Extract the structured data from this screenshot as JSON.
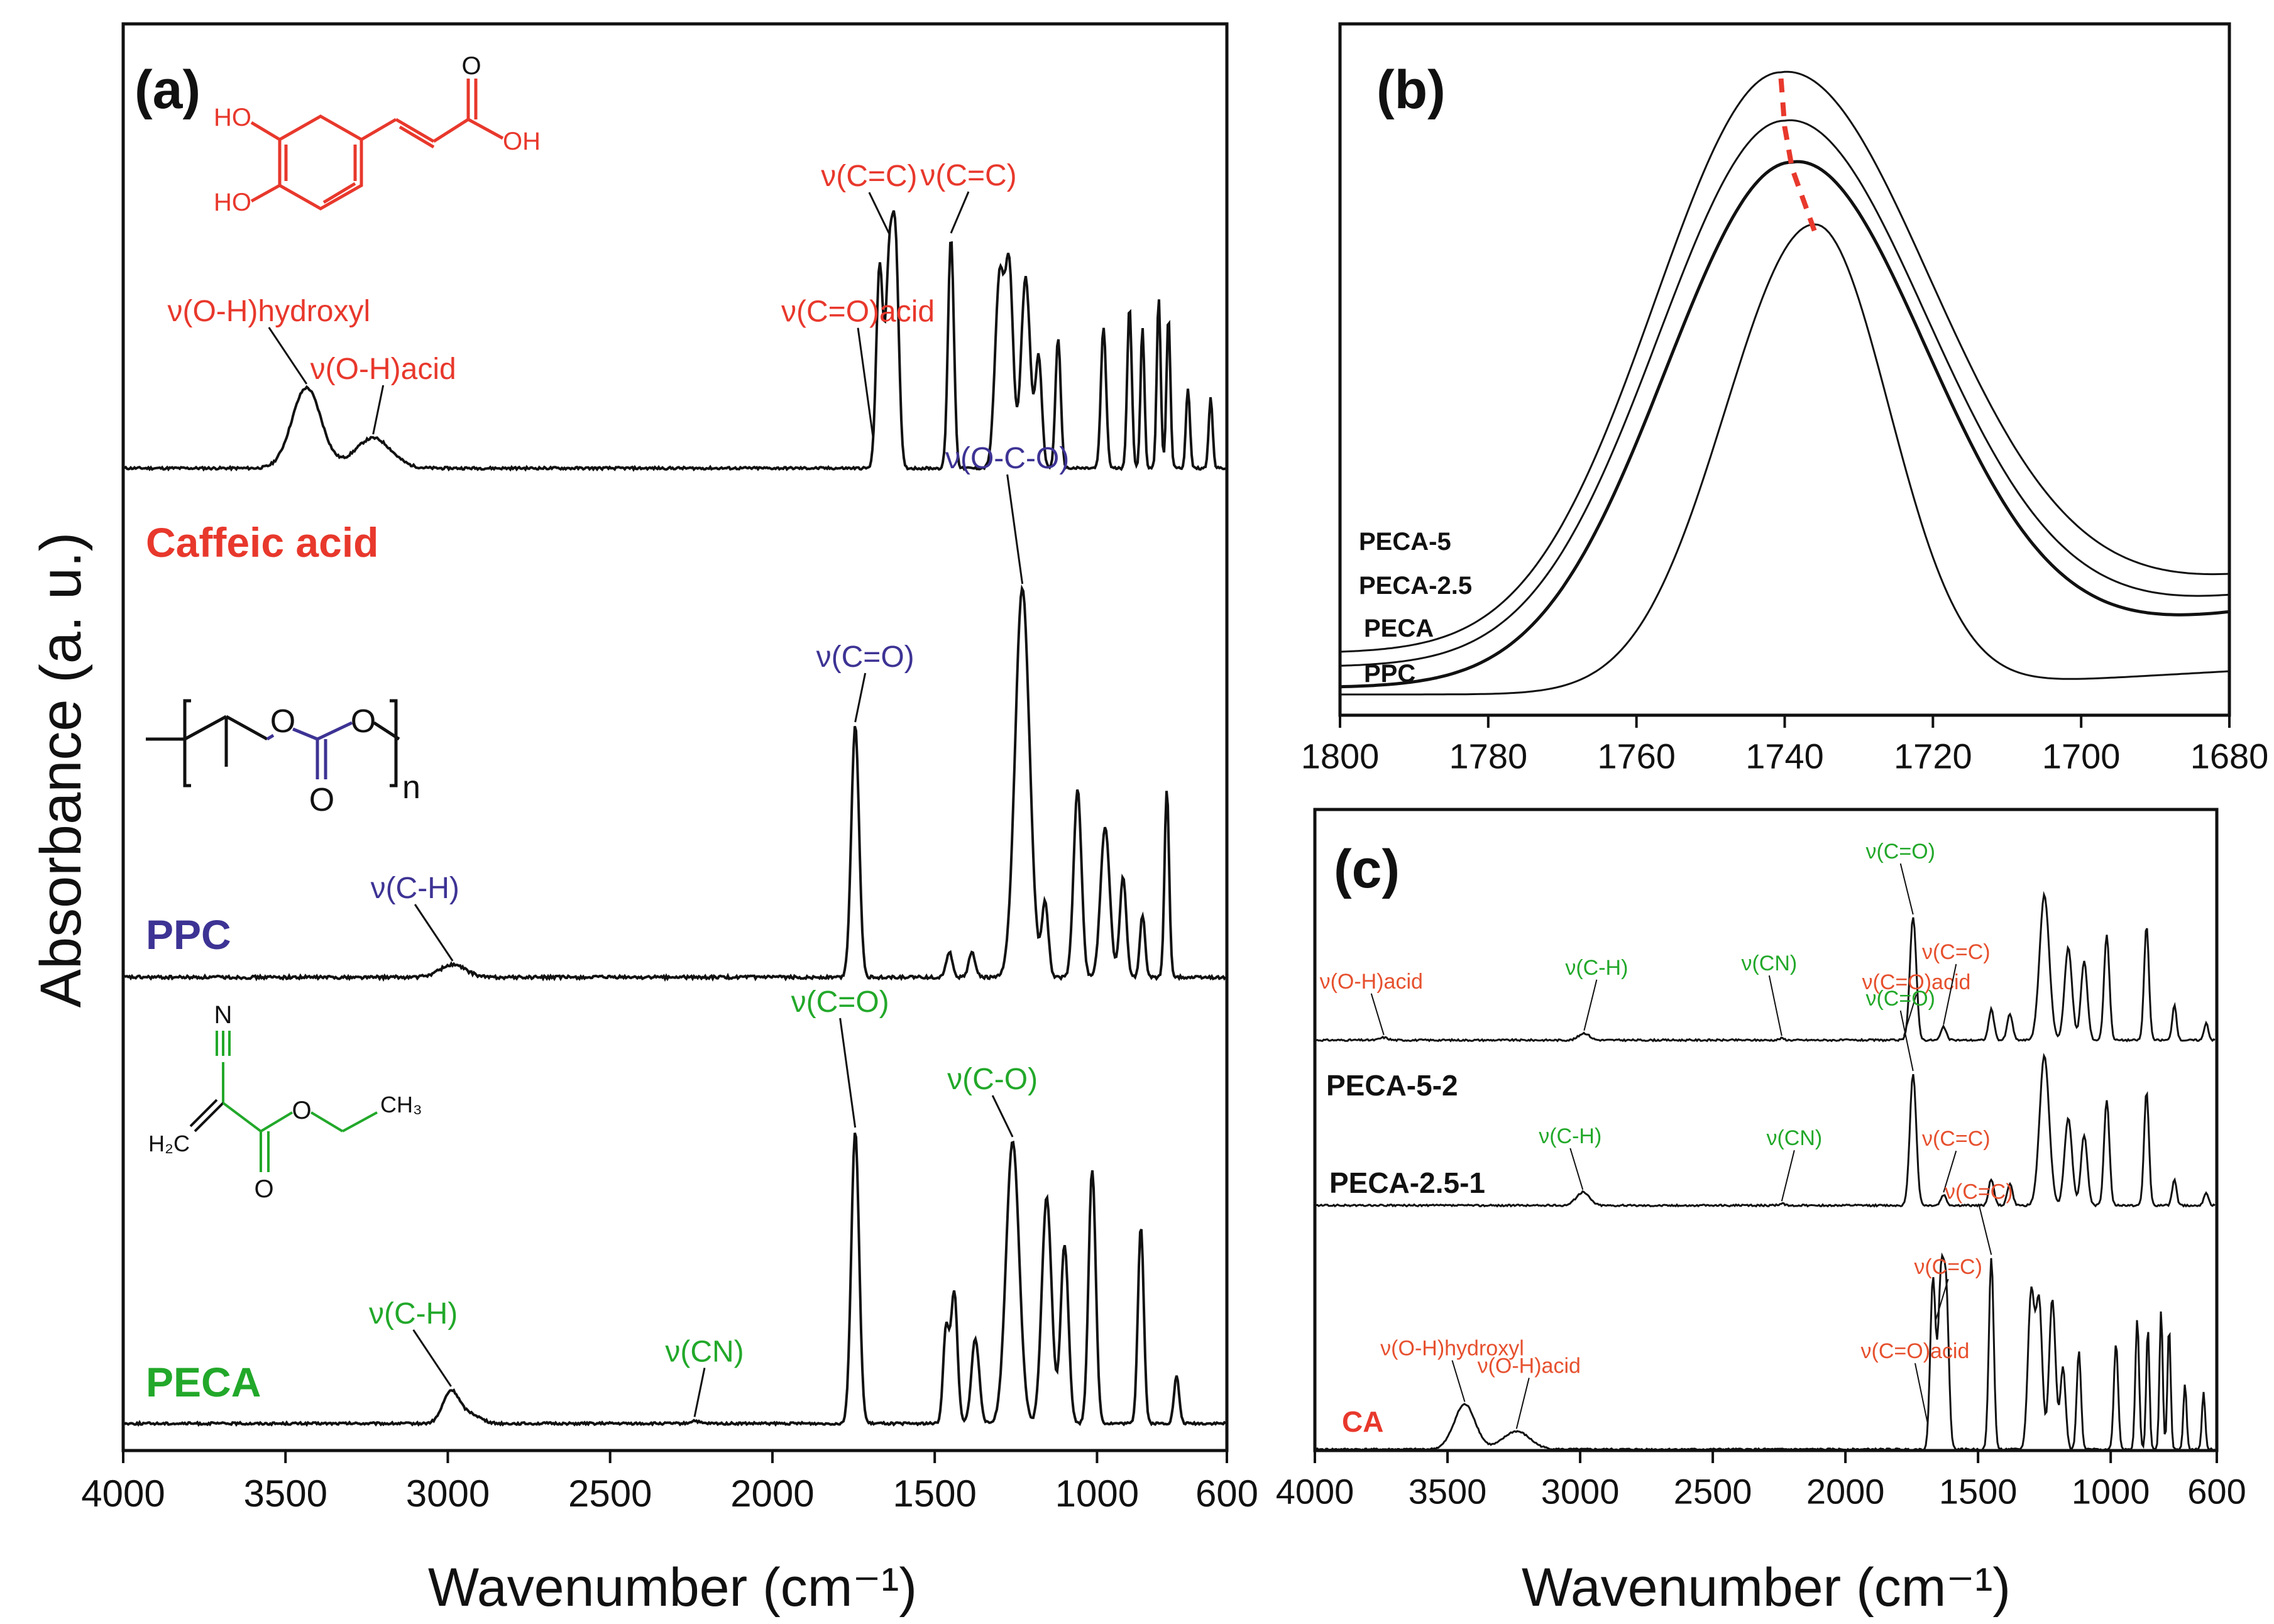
{
  "colors": {
    "red": "#e8382c",
    "blue": "#3d3394",
    "green": "#22a82a",
    "black": "#111111",
    "orangered": "#e6502e"
  },
  "figure": {
    "ylabel": "Absorbance (a. u.)"
  },
  "chart_data": [
    {
      "panel": "(a)",
      "type": "line",
      "xlabel": "Wavenumber (cm⁻¹)",
      "xlim": [
        4000,
        600
      ],
      "xticks": [
        4000,
        3500,
        3000,
        2500,
        2000,
        1500,
        1000,
        600
      ],
      "ylabel": "Absorbance (a. u.)",
      "structures": [
        "caffeic-acid-structure",
        "ppc-structure",
        "peca-structure"
      ],
      "series": [
        {
          "name": "Caffeic acid",
          "color": "#e8382c",
          "peaks": [
            {
              "x": 3435,
              "h": 0.4,
              "w": 45
            },
            {
              "x": 3230,
              "h": 0.15,
              "w": 55
            },
            {
              "x": 1670,
              "h": 1.0,
              "w": 10
            },
            {
              "x": 1640,
              "h": 1.0,
              "w": 11
            },
            {
              "x": 1620,
              "h": 1.0,
              "w": 10
            },
            {
              "x": 1450,
              "h": 1.15,
              "w": 9
            },
            {
              "x": 1300,
              "h": 0.95,
              "w": 14
            },
            {
              "x": 1270,
              "h": 0.95,
              "w": 12
            },
            {
              "x": 1220,
              "h": 0.95,
              "w": 14
            },
            {
              "x": 1180,
              "h": 0.55,
              "w": 10
            },
            {
              "x": 1120,
              "h": 0.65,
              "w": 8
            },
            {
              "x": 980,
              "h": 0.7,
              "w": 8
            },
            {
              "x": 900,
              "h": 0.8,
              "w": 7
            },
            {
              "x": 860,
              "h": 0.7,
              "w": 6
            },
            {
              "x": 810,
              "h": 0.85,
              "w": 6
            },
            {
              "x": 780,
              "h": 0.75,
              "w": 6
            },
            {
              "x": 720,
              "h": 0.4,
              "w": 6
            },
            {
              "x": 650,
              "h": 0.35,
              "w": 6
            }
          ],
          "annotations": [
            {
              "text": "ν(O-H)hydroxyl",
              "x": 3435
            },
            {
              "text": "ν(O-H)acid",
              "x": 3230
            },
            {
              "text": "ν(C=O)acid",
              "x": 1690
            },
            {
              "text": "ν(C=C)",
              "x": 1640
            },
            {
              "text": "ν(C=C)",
              "x": 1450
            }
          ]
        },
        {
          "name": "PPC",
          "color": "#3d3394",
          "peaks": [
            {
              "x": 2985,
              "h": 0.05,
              "w": 40
            },
            {
              "x": 1745,
              "h": 1.0,
              "w": 12
            },
            {
              "x": 1455,
              "h": 0.1,
              "w": 10
            },
            {
              "x": 1385,
              "h": 0.1,
              "w": 10
            },
            {
              "x": 1230,
              "h": 1.55,
              "w": 22
            },
            {
              "x": 1160,
              "h": 0.3,
              "w": 10
            },
            {
              "x": 1060,
              "h": 0.75,
              "w": 12
            },
            {
              "x": 975,
              "h": 0.6,
              "w": 14
            },
            {
              "x": 920,
              "h": 0.4,
              "w": 10
            },
            {
              "x": 860,
              "h": 0.25,
              "w": 8
            },
            {
              "x": 785,
              "h": 0.75,
              "w": 7
            }
          ],
          "annotations": [
            {
              "text": "ν(C-H)",
              "x": 2985
            },
            {
              "text": "ν(C=O)",
              "x": 1745
            },
            {
              "text": "ν(O-C-O)",
              "x": 1230
            }
          ]
        },
        {
          "name": "PECA",
          "color": "#22a82a",
          "peaks": [
            {
              "x": 2990,
              "h": 0.17,
              "w": 25
            },
            {
              "x": 2930,
              "h": 0.05,
              "w": 30
            },
            {
              "x": 2240,
              "h": 0.015,
              "w": 12
            },
            {
              "x": 1745,
              "h": 1.55,
              "w": 12
            },
            {
              "x": 1465,
              "h": 0.5,
              "w": 9
            },
            {
              "x": 1440,
              "h": 0.7,
              "w": 10
            },
            {
              "x": 1375,
              "h": 0.45,
              "w": 12
            },
            {
              "x": 1260,
              "h": 1.5,
              "w": 20
            },
            {
              "x": 1155,
              "h": 1.2,
              "w": 15
            },
            {
              "x": 1100,
              "h": 0.95,
              "w": 12
            },
            {
              "x": 1015,
              "h": 1.35,
              "w": 11
            },
            {
              "x": 865,
              "h": 1.05,
              "w": 9
            },
            {
              "x": 755,
              "h": 0.25,
              "w": 8
            }
          ],
          "annotations": [
            {
              "text": "ν(C-H)",
              "x": 2990
            },
            {
              "text": "ν(CN)",
              "x": 2240
            },
            {
              "text": "ν(C=O)",
              "x": 1745
            },
            {
              "text": "ν(C-O)",
              "x": 1260
            }
          ]
        }
      ]
    },
    {
      "panel": "(b)",
      "type": "line",
      "xlabel": "",
      "xlim": [
        1800,
        1680
      ],
      "xticks": [
        1800,
        1780,
        1760,
        1740,
        1720,
        1700,
        1680
      ],
      "note": "dashed red line traces the C=O peak maximum shift",
      "series": [
        {
          "name": "PECA-5",
          "peak_x": 1740.5,
          "base": 0.09,
          "top": 0.93,
          "left_w": 17,
          "right_w": 20,
          "tail_slope": 0.0035,
          "sw": 3
        },
        {
          "name": "PECA-2.5",
          "peak_x": 1740,
          "base": 0.07,
          "top": 0.86,
          "left_w": 17,
          "right_w": 19,
          "tail_slope": 0.0033,
          "sw": 3
        },
        {
          "name": "PECA",
          "peak_x": 1739,
          "base": 0.04,
          "top": 0.8,
          "left_w": 17,
          "right_w": 18,
          "tail_slope": 0.0036,
          "sw": 5
        },
        {
          "name": "PPC",
          "peak_x": 1736,
          "base": 0.03,
          "top": 0.71,
          "left_w": 12,
          "right_w": 10,
          "tail_slope": 0.0012,
          "sw": 3
        }
      ]
    },
    {
      "panel": "(c)",
      "type": "line",
      "xlabel": "Wavenumber (cm⁻¹)",
      "xlim": [
        4000,
        600
      ],
      "xticks": [
        4000,
        3500,
        3000,
        2500,
        2000,
        1500,
        1000,
        600
      ],
      "series": [
        {
          "name": "PECA-5-2",
          "color": "#111111",
          "peaks": [
            {
              "x": 3740,
              "h": 0.03,
              "w": 15
            },
            {
              "x": 2985,
              "h": 0.08,
              "w": 20
            },
            {
              "x": 2240,
              "h": 0.02,
              "w": 10
            },
            {
              "x": 1745,
              "h": 1.4,
              "w": 12
            },
            {
              "x": 1630,
              "h": 0.15,
              "w": 10
            },
            {
              "x": 1450,
              "h": 0.35,
              "w": 10
            },
            {
              "x": 1380,
              "h": 0.3,
              "w": 10
            },
            {
              "x": 1250,
              "h": 1.65,
              "w": 18
            },
            {
              "x": 1160,
              "h": 1.05,
              "w": 14
            },
            {
              "x": 1100,
              "h": 0.9,
              "w": 12
            },
            {
              "x": 1015,
              "h": 1.2,
              "w": 10
            },
            {
              "x": 865,
              "h": 1.3,
              "w": 9
            },
            {
              "x": 760,
              "h": 0.4,
              "w": 8
            },
            {
              "x": 640,
              "h": 0.2,
              "w": 8
            }
          ],
          "annotations": [
            {
              "text": "ν(O-H)acid",
              "x": 3740,
              "color": "red"
            },
            {
              "text": "ν(C-H)",
              "x": 2985,
              "color": "green"
            },
            {
              "text": "ν(CN)",
              "x": 2240,
              "color": "green"
            },
            {
              "text": "ν(C=O)acid",
              "x": 1780,
              "color": "red"
            },
            {
              "text": "ν(C=O)",
              "x": 1745,
              "color": "green"
            },
            {
              "text": "ν(C=C)",
              "x": 1630,
              "color": "red"
            }
          ]
        },
        {
          "name": "PECA-2.5-1",
          "color": "#111111",
          "peaks": [
            {
              "x": 2990,
              "h": 0.15,
              "w": 25
            },
            {
              "x": 2240,
              "h": 0.02,
              "w": 10
            },
            {
              "x": 1745,
              "h": 1.5,
              "w": 12
            },
            {
              "x": 1630,
              "h": 0.12,
              "w": 10
            },
            {
              "x": 1450,
              "h": 0.3,
              "w": 10
            },
            {
              "x": 1380,
              "h": 0.25,
              "w": 10
            },
            {
              "x": 1250,
              "h": 1.7,
              "w": 18
            },
            {
              "x": 1160,
              "h": 1.0,
              "w": 14
            },
            {
              "x": 1100,
              "h": 0.8,
              "w": 12
            },
            {
              "x": 1015,
              "h": 1.2,
              "w": 10
            },
            {
              "x": 865,
              "h": 1.3,
              "w": 9
            },
            {
              "x": 760,
              "h": 0.3,
              "w": 8
            },
            {
              "x": 640,
              "h": 0.15,
              "w": 8
            }
          ],
          "annotations": [
            {
              "text": "ν(C-H)",
              "x": 2990,
              "color": "green"
            },
            {
              "text": "ν(CN)",
              "x": 2240,
              "color": "green"
            },
            {
              "text": "ν(C=O)",
              "x": 1745,
              "color": "green"
            },
            {
              "text": "ν(C=C)",
              "x": 1630,
              "color": "red"
            }
          ]
        },
        {
          "name": "CA",
          "color": "#e8382c",
          "peaks": [
            {
              "x": 3435,
              "h": 0.55,
              "w": 40
            },
            {
              "x": 3240,
              "h": 0.22,
              "w": 50
            },
            {
              "x": 1670,
              "h": 2.1,
              "w": 10
            },
            {
              "x": 1640,
              "h": 2.0,
              "w": 10
            },
            {
              "x": 1620,
              "h": 1.85,
              "w": 10
            },
            {
              "x": 1450,
              "h": 2.35,
              "w": 9
            },
            {
              "x": 1300,
              "h": 1.9,
              "w": 12
            },
            {
              "x": 1270,
              "h": 1.8,
              "w": 12
            },
            {
              "x": 1220,
              "h": 1.85,
              "w": 12
            },
            {
              "x": 1180,
              "h": 1.0,
              "w": 10
            },
            {
              "x": 1120,
              "h": 1.2,
              "w": 8
            },
            {
              "x": 980,
              "h": 1.3,
              "w": 8
            },
            {
              "x": 900,
              "h": 1.6,
              "w": 7
            },
            {
              "x": 860,
              "h": 1.5,
              "w": 6
            },
            {
              "x": 810,
              "h": 1.7,
              "w": 6
            },
            {
              "x": 780,
              "h": 1.5,
              "w": 6
            },
            {
              "x": 720,
              "h": 0.8,
              "w": 6
            },
            {
              "x": 650,
              "h": 0.7,
              "w": 6
            }
          ],
          "annotations": [
            {
              "text": "ν(O-H)hydroxyl",
              "x": 3435,
              "color": "red"
            },
            {
              "text": "ν(O-H)acid",
              "x": 3240,
              "color": "red"
            },
            {
              "text": "ν(C=O)acid",
              "x": 1690,
              "color": "red"
            },
            {
              "text": "ν(C=C)",
              "x": 1660,
              "color": "red"
            },
            {
              "text": "ν(C=C)",
              "x": 1450,
              "color": "red"
            }
          ]
        }
      ]
    }
  ]
}
